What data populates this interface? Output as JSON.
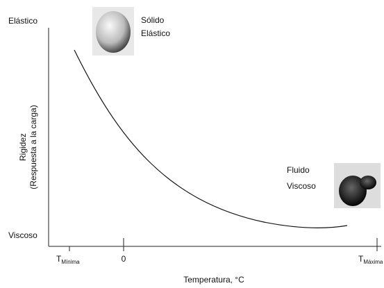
{
  "y_axis": {
    "top_label": "Elástico",
    "bottom_label": "Viscoso",
    "title": [
      "Rigidez",
      "(Respuesta a la carga)"
    ]
  },
  "x_axis": {
    "ticks": [
      {
        "main": "T",
        "sub": "Mínima"
      },
      {
        "main": "0"
      },
      {
        "main": "T",
        "sub": "Máxima"
      }
    ],
    "title": "Temperatura, °C"
  },
  "annotations": [
    {
      "lines": [
        "Sólido",
        "Elástico"
      ]
    },
    {
      "lines": [
        "Fluido",
        "Viscoso"
      ]
    }
  ]
}
